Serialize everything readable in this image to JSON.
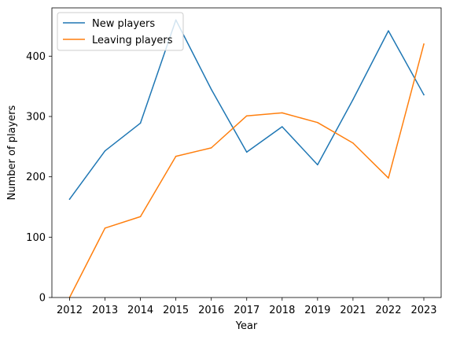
{
  "chart_data": {
    "type": "line",
    "title": "",
    "xlabel": "Year",
    "ylabel": "Number of players",
    "x": [
      "2012",
      "2013",
      "2014",
      "2015",
      "2016",
      "2017",
      "2018",
      "2019",
      "2021",
      "2022",
      "2023"
    ],
    "ylim": [
      0,
      480
    ],
    "yticks": [
      0,
      100,
      200,
      300,
      400
    ],
    "grid": false,
    "legend_position": "upper-left",
    "series": [
      {
        "name": "New players",
        "color": "#1f77b4",
        "values": [
          163,
          243,
          289,
          460,
          345,
          241,
          283,
          220,
          328,
          442,
          336
        ]
      },
      {
        "name": "Leaving players",
        "color": "#ff7f0e",
        "values": [
          0,
          115,
          134,
          234,
          248,
          301,
          306,
          290,
          256,
          198,
          420
        ]
      }
    ]
  }
}
